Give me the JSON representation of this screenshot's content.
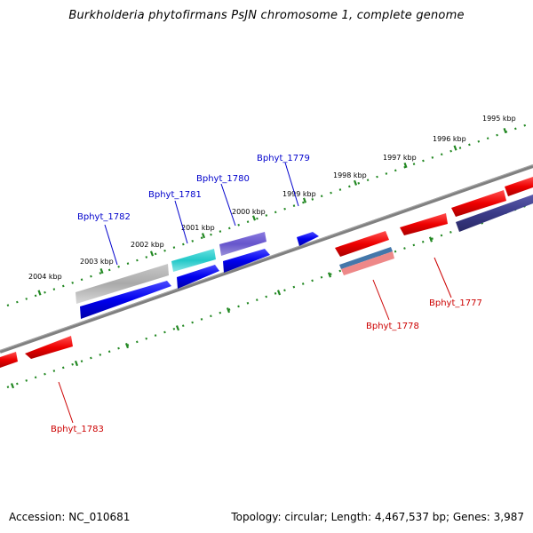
{
  "title": "Burkholderia phytofirmans PsJN chromosome 1, complete genome",
  "accession": "Accession: NC_010681",
  "summary": "Topology: circular; Length: 4,467,537 bp; Genes: 3,987",
  "ticks": [
    "2004 kbp",
    "2003 kbp",
    "2002 kbp",
    "2001 kbp",
    "2000 kbp",
    "1999 kbp",
    "1998 kbp",
    "1997 kbp",
    "1996 kbp",
    "1995 kbp"
  ],
  "genes": {
    "g1782": "Bphyt_1782",
    "g1781": "Bphyt_1781",
    "g1780": "Bphyt_1780",
    "g1779": "Bphyt_1779",
    "g1778": "Bphyt_1778",
    "g1777": "Bphyt_1777",
    "g1783": "Bphyt_1783"
  },
  "colors": {
    "forward_blue": "#0000ee",
    "cyan": "#22c8c8",
    "slate": "#6655cc",
    "navy": "#3a3a88",
    "reverse_red": "#ee0000",
    "pink": "#ee8888",
    "grey": "#aaaaaa",
    "tick_green": "#228822",
    "backbone": "#808080"
  }
}
